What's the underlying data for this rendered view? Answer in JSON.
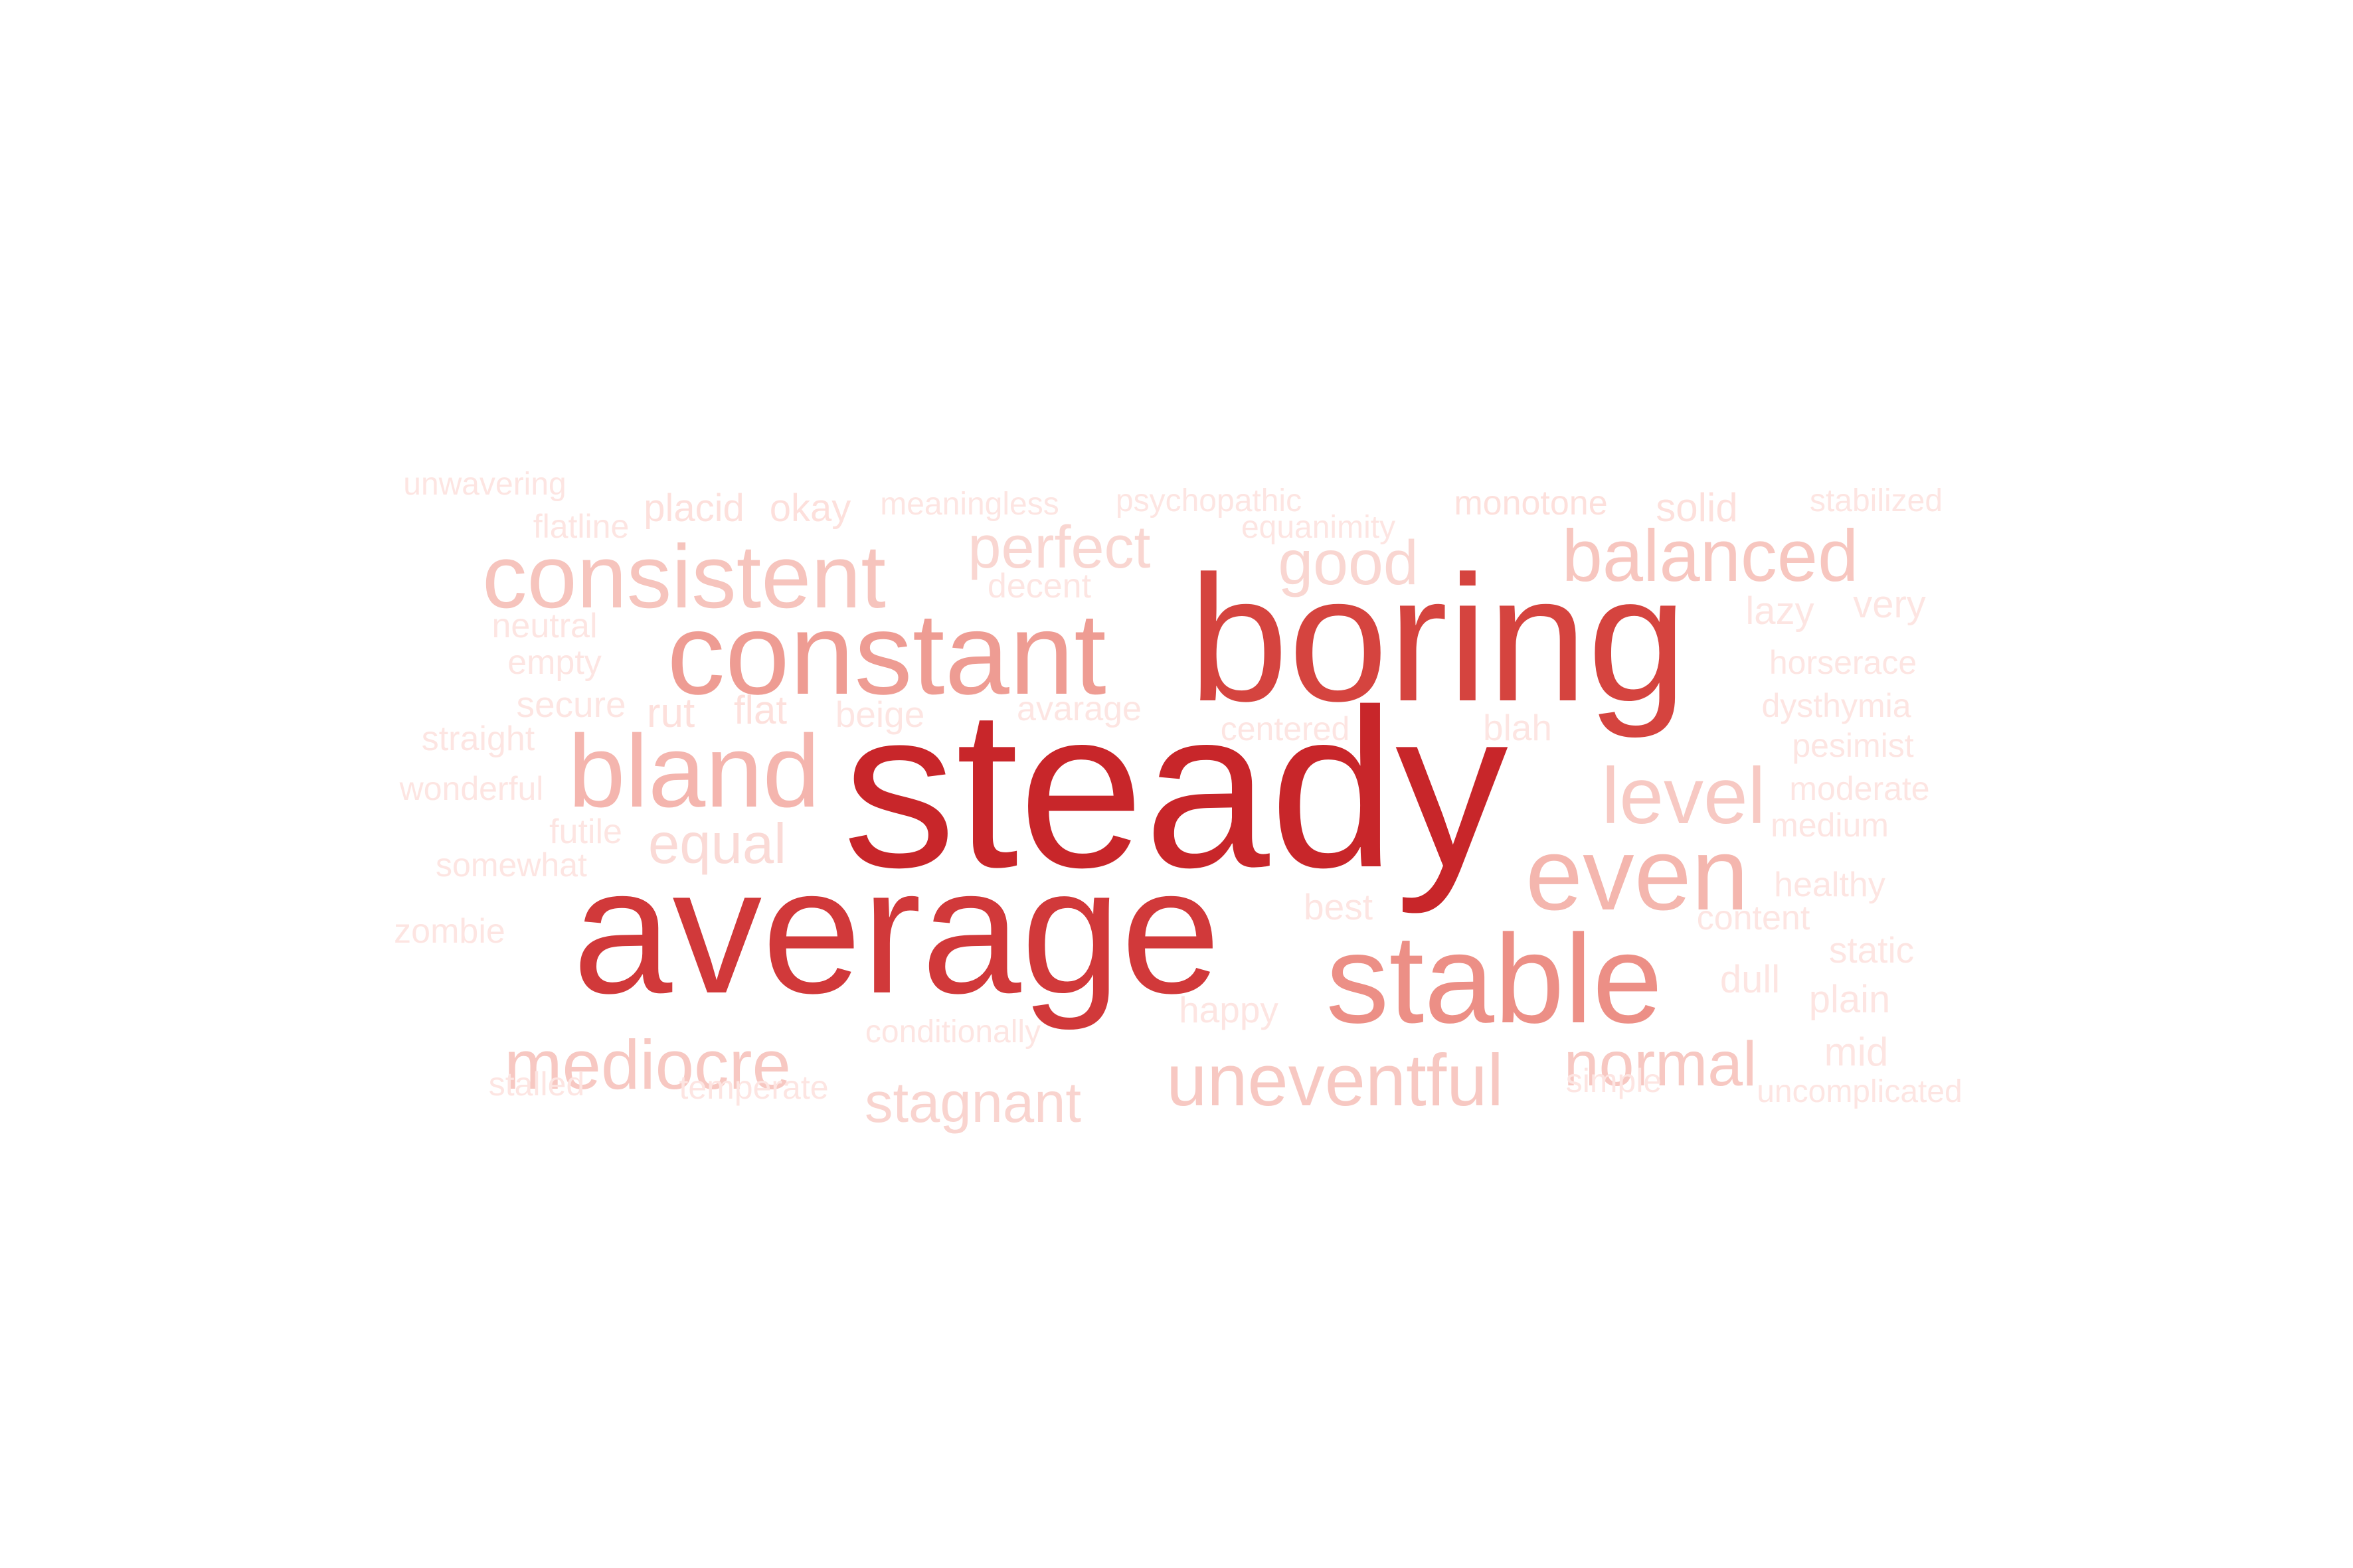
{
  "words": [
    {
      "text": "steady",
      "color": "#c8262a"
    },
    {
      "text": "average",
      "color": "#d1393a"
    },
    {
      "text": "boring",
      "color": "#d5443f"
    },
    {
      "text": "stable",
      "color": "#ec8f86"
    },
    {
      "text": "constant",
      "color": "#ee9c93"
    },
    {
      "text": "bland",
      "color": "#f4b5ae"
    },
    {
      "text": "even",
      "color": "#f4b6ae"
    },
    {
      "text": "consistent",
      "color": "#f6c4bd"
    },
    {
      "text": "level",
      "color": "#f7c9c3"
    },
    {
      "text": "balanced",
      "color": "#f7c6bf"
    },
    {
      "text": "uneventful",
      "color": "#f7c8c2"
    },
    {
      "text": "mediocre",
      "color": "#f7c8c2"
    },
    {
      "text": "normal",
      "color": "#f7c8c2"
    },
    {
      "text": "perfect",
      "color": "#f9d6d1"
    },
    {
      "text": "good",
      "color": "#f9d6d1"
    },
    {
      "text": "stagnant",
      "color": "#f9d4cf"
    },
    {
      "text": "equal",
      "color": "#fadad6"
    },
    {
      "text": "unwavering",
      "color": "#fde5e2"
    },
    {
      "text": "placid",
      "color": "#fde0dc"
    },
    {
      "text": "okay",
      "color": "#fde0dc"
    },
    {
      "text": "meaningless",
      "color": "#fde5e2"
    },
    {
      "text": "psychopathic",
      "color": "#fde5e2"
    },
    {
      "text": "monotone",
      "color": "#fde0dc"
    },
    {
      "text": "solid",
      "color": "#fde0dc"
    },
    {
      "text": "stabilized",
      "color": "#fde5e2"
    },
    {
      "text": "flatline",
      "color": "#fde5e2"
    },
    {
      "text": "equanimity",
      "color": "#fde5e2"
    },
    {
      "text": "decent",
      "color": "#fde5e2"
    },
    {
      "text": "lazy",
      "color": "#fde5e2"
    },
    {
      "text": "very",
      "color": "#fde5e2"
    },
    {
      "text": "neutral",
      "color": "#fde5e2"
    },
    {
      "text": "empty",
      "color": "#fde5e2"
    },
    {
      "text": "horserace",
      "color": "#fde5e2"
    },
    {
      "text": "secure",
      "color": "#fde5e2"
    },
    {
      "text": "rut",
      "color": "#fde0dc"
    },
    {
      "text": "flat",
      "color": "#fde0dc"
    },
    {
      "text": "beige",
      "color": "#fde5e2"
    },
    {
      "text": "avarage",
      "color": "#fde5e2"
    },
    {
      "text": "dysthymia",
      "color": "#fde5e2"
    },
    {
      "text": "straight",
      "color": "#fde5e2"
    },
    {
      "text": "centered",
      "color": "#fde5e2"
    },
    {
      "text": "blah",
      "color": "#fde5e2"
    },
    {
      "text": "pesimist",
      "color": "#fde5e2"
    },
    {
      "text": "wonderful",
      "color": "#fde5e2"
    },
    {
      "text": "moderate",
      "color": "#fde5e2"
    },
    {
      "text": "futile",
      "color": "#fde5e2"
    },
    {
      "text": "medium",
      "color": "#fde5e2"
    },
    {
      "text": "somewhat",
      "color": "#fde5e2"
    },
    {
      "text": "healthy",
      "color": "#fde5e2"
    },
    {
      "text": "best",
      "color": "#fde5e2"
    },
    {
      "text": "content",
      "color": "#fde5e2"
    },
    {
      "text": "zombie",
      "color": "#fde5e2"
    },
    {
      "text": "static",
      "color": "#fde5e2"
    },
    {
      "text": "dull",
      "color": "#fde5e2"
    },
    {
      "text": "happy",
      "color": "#fde5e2"
    },
    {
      "text": "plain",
      "color": "#fde5e2"
    },
    {
      "text": "conditionally",
      "color": "#fde5e2"
    },
    {
      "text": "mid",
      "color": "#fde5e2"
    },
    {
      "text": "stalled",
      "color": "#fde5e2"
    },
    {
      "text": "temperate",
      "color": "#fde5e2"
    },
    {
      "text": "simple",
      "color": "#fde5e2"
    },
    {
      "text": "uncomplicated",
      "color": "#fde5e2"
    }
  ]
}
